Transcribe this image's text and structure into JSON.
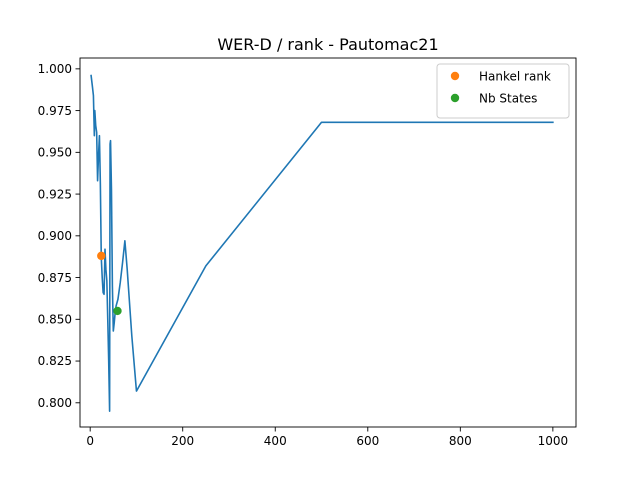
{
  "chart_data": {
    "type": "line",
    "title": "WER-D / rank - Pautomac21",
    "xlabel": "",
    "ylabel": "",
    "xlim": [
      -22,
      1050
    ],
    "ylim": [
      0.7855,
      1.0065
    ],
    "x_ticks": [
      {
        "value": 0,
        "label": "0"
      },
      {
        "value": 200,
        "label": "200"
      },
      {
        "value": 400,
        "label": "400"
      },
      {
        "value": 600,
        "label": "600"
      },
      {
        "value": 800,
        "label": "800"
      },
      {
        "value": 1000,
        "label": "1000"
      }
    ],
    "y_ticks": [
      {
        "value": 0.8,
        "label": "0.800"
      },
      {
        "value": 0.825,
        "label": "0.825"
      },
      {
        "value": 0.85,
        "label": "0.850"
      },
      {
        "value": 0.875,
        "label": "0.875"
      },
      {
        "value": 0.9,
        "label": "0.900"
      },
      {
        "value": 0.925,
        "label": "0.925"
      },
      {
        "value": 0.95,
        "label": "0.950"
      },
      {
        "value": 0.975,
        "label": "0.975"
      },
      {
        "value": 1.0,
        "label": "1.000"
      }
    ],
    "grid": false,
    "legend_position": "top-right",
    "series": [
      {
        "type": "line",
        "color": "#1f77b4",
        "points": [
          [
            2,
            0.996
          ],
          [
            5,
            0.989
          ],
          [
            7,
            0.984
          ],
          [
            9,
            0.96
          ],
          [
            10,
            0.975
          ],
          [
            12,
            0.966
          ],
          [
            14,
            0.962
          ],
          [
            16,
            0.933
          ],
          [
            18,
            0.948
          ],
          [
            20,
            0.96
          ],
          [
            22,
            0.931
          ],
          [
            24,
            0.887
          ],
          [
            26,
            0.875
          ],
          [
            28,
            0.866
          ],
          [
            30,
            0.865
          ],
          [
            32,
            0.892
          ],
          [
            34,
            0.88
          ],
          [
            36,
            0.873
          ],
          [
            38,
            0.85
          ],
          [
            40,
            0.825
          ],
          [
            42,
            0.795
          ],
          [
            43,
            0.955
          ],
          [
            44,
            0.957
          ],
          [
            46,
            0.928
          ],
          [
            48,
            0.87
          ],
          [
            50,
            0.843
          ],
          [
            52,
            0.848
          ],
          [
            54,
            0.854
          ],
          [
            56,
            0.858
          ],
          [
            60,
            0.862
          ],
          [
            65,
            0.872
          ],
          [
            70,
            0.884
          ],
          [
            75,
            0.897
          ],
          [
            80,
            0.88
          ],
          [
            90,
            0.84
          ],
          [
            100,
            0.807
          ],
          [
            250,
            0.882
          ],
          [
            500,
            0.968
          ],
          [
            1000,
            0.968
          ]
        ]
      },
      {
        "name": "Hankel rank",
        "type": "scatter",
        "color": "#ff7f0e",
        "points": [
          [
            24,
            0.888
          ]
        ]
      },
      {
        "name": "Nb States",
        "type": "scatter",
        "color": "#2ca02c",
        "points": [
          [
            59,
            0.855
          ]
        ]
      }
    ]
  }
}
